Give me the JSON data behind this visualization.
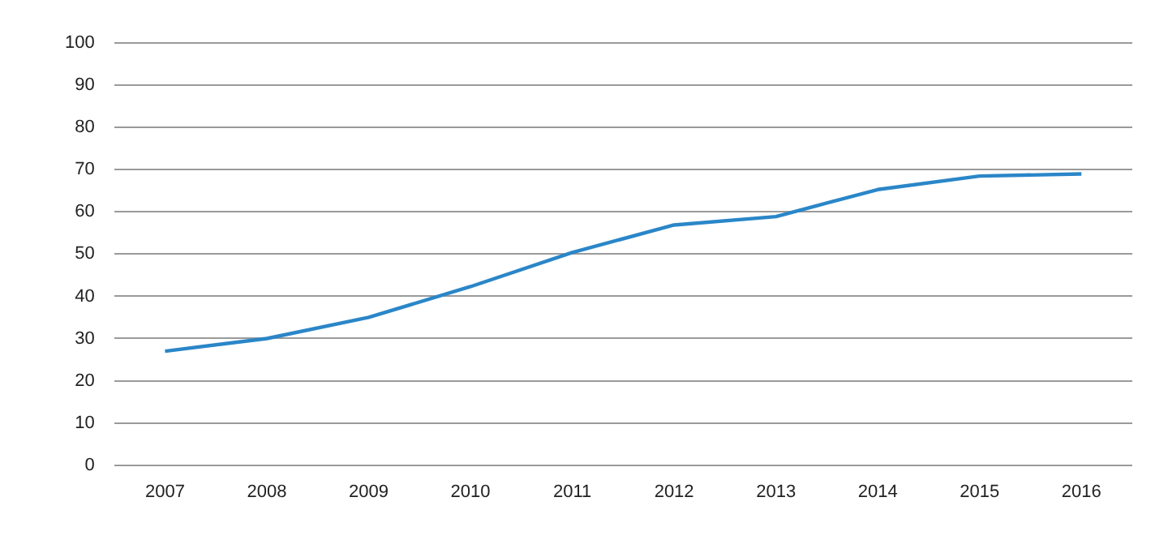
{
  "chart_data": {
    "type": "line",
    "categories": [
      "2007",
      "2008",
      "2009",
      "2010",
      "2011",
      "2012",
      "2013",
      "2014",
      "2015",
      "2016"
    ],
    "series": [
      {
        "color": "#2a86c8",
        "values": [
          27,
          30,
          35,
          42.3,
          50.4,
          56.9,
          58.9,
          65.3,
          68.5,
          69
        ]
      }
    ],
    "ylim": [
      0,
      100
    ],
    "yticks": [
      0,
      10,
      20,
      30,
      40,
      50,
      60,
      70,
      80,
      90,
      100
    ],
    "grid": "y",
    "legend": false,
    "marker": "none",
    "line_style": "solid"
  }
}
